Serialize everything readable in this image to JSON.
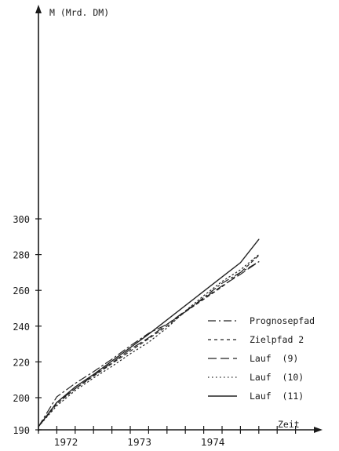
{
  "chart_data": {
    "type": "line",
    "ylabel": "M (Mrd. DM)",
    "xlabel": "Zeit",
    "y_ticks": [
      190,
      200,
      220,
      240,
      260,
      280,
      300
    ],
    "y_tick_labels": [
      "190",
      "200",
      "220",
      "240",
      "260",
      "280",
      "300"
    ],
    "x_tick_labels": [
      "1972",
      "1973",
      "1974"
    ],
    "x_label_quarters": [
      1.5,
      5.5,
      9.5
    ],
    "quarter_count": 14,
    "x_range_quarters": [
      0,
      14
    ],
    "ylim": [
      190,
      300
    ],
    "grid": false,
    "legend_position": "bottom-right",
    "series": [
      {
        "name": "Prognosepfad",
        "style": "dashdot",
        "points": [
          [
            0,
            191
          ],
          [
            1,
            200.5
          ],
          [
            2,
            208
          ],
          [
            3,
            214.5
          ],
          [
            4,
            221.5
          ],
          [
            5,
            229
          ],
          [
            6,
            236
          ],
          [
            7,
            241
          ],
          [
            8,
            248
          ],
          [
            9,
            256
          ],
          [
            10,
            264
          ],
          [
            11,
            270
          ],
          [
            12,
            276
          ]
        ]
      },
      {
        "name": "Zielpfad 2",
        "style": "dashed-short",
        "points": [
          [
            0,
            191
          ],
          [
            1,
            198
          ],
          [
            2,
            205
          ],
          [
            3,
            212
          ],
          [
            4,
            219
          ],
          [
            5,
            226
          ],
          [
            6,
            233
          ],
          [
            7,
            240
          ],
          [
            8,
            248
          ],
          [
            9,
            255
          ],
          [
            10,
            262
          ],
          [
            11,
            270
          ],
          [
            12,
            279.5
          ]
        ]
      },
      {
        "name": "Lauf  (9)",
        "style": "dashed-long",
        "points": [
          [
            0,
            191
          ],
          [
            1,
            198.5
          ],
          [
            2,
            205
          ],
          [
            3,
            212.5
          ],
          [
            4,
            219.5
          ],
          [
            5,
            227
          ],
          [
            6,
            233.5
          ],
          [
            7,
            241
          ],
          [
            8,
            248.5
          ],
          [
            9,
            255.5
          ],
          [
            10,
            262.5
          ],
          [
            11,
            269
          ],
          [
            12,
            276
          ]
        ]
      },
      {
        "name": "Lauf  (10)",
        "style": "dotted",
        "points": [
          [
            0,
            191
          ],
          [
            1,
            197.5
          ],
          [
            2,
            204
          ],
          [
            3,
            211
          ],
          [
            4,
            217.5
          ],
          [
            5,
            224.5
          ],
          [
            6,
            231
          ],
          [
            7,
            239
          ],
          [
            8,
            248.5
          ],
          [
            9,
            257
          ],
          [
            10,
            265
          ],
          [
            11,
            271.5
          ],
          [
            12,
            280
          ]
        ]
      },
      {
        "name": "Lauf  (11)",
        "style": "solid",
        "points": [
          [
            0,
            191
          ],
          [
            1,
            198.5
          ],
          [
            2,
            206
          ],
          [
            3,
            213
          ],
          [
            4,
            220.5
          ],
          [
            5,
            228
          ],
          [
            6,
            235.5
          ],
          [
            7,
            243.5
          ],
          [
            8,
            251.5
          ],
          [
            9,
            259.5
          ],
          [
            10,
            267.5
          ],
          [
            11,
            275.5
          ],
          [
            12,
            288.5
          ]
        ]
      }
    ]
  }
}
